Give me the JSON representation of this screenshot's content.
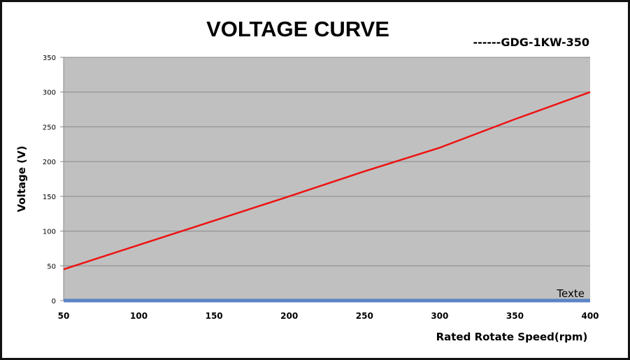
{
  "chart_data": {
    "type": "line",
    "title": "VOLTAGE CURVE",
    "xlabel": "Rated Rotate Speed(rpm)",
    "ylabel": "Voltage (V)",
    "legend_label": "------GDG-1KW-350",
    "legend_position": "top-right",
    "x": [
      50,
      100,
      150,
      200,
      250,
      300,
      350,
      400
    ],
    "series": [
      {
        "name": "GDG-1KW-350",
        "color": "#ee1111",
        "values": [
          45,
          80,
          115,
          150,
          186,
          220,
          261,
          300
        ]
      },
      {
        "name": "Texte",
        "color": "#5b84c4",
        "values": [
          0,
          0,
          0,
          0,
          0,
          0,
          0,
          0
        ]
      }
    ],
    "series_label": "Texte",
    "xlim": [
      50,
      400
    ],
    "ylim": [
      0,
      350
    ],
    "xticks": [
      "50",
      "100",
      "150",
      "200",
      "250",
      "300",
      "350",
      "400"
    ],
    "yticks": [
      "0",
      "50",
      "100",
      "150",
      "200",
      "250",
      "300",
      "350"
    ],
    "grid": true,
    "plot_background": "#c0c0c0"
  }
}
